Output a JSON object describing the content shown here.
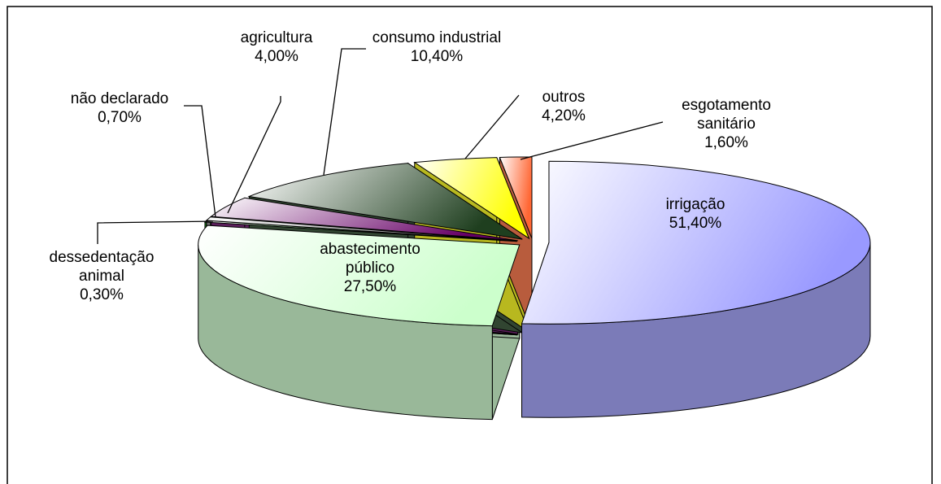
{
  "chart_data": {
    "type": "pie",
    "categories": [
      "irrigação",
      "abastecimento público",
      "dessedentação animal",
      "não declarado",
      "agricultura",
      "consumo industrial",
      "outros",
      "esgotamento sanitário"
    ],
    "values": [
      51.4,
      27.5,
      0.3,
      0.7,
      4.0,
      10.4,
      4.2,
      1.6
    ],
    "value_labels": [
      "51,40%",
      "27,50%",
      "0,30%",
      "0,70%",
      "4,00%",
      "10,40%",
      "4,20%",
      "1,60%"
    ],
    "colors": [
      "#9999ff",
      "#ccffcc",
      "#00cc00",
      "#808080",
      "#660066",
      "#1f3f1f",
      "#ffff00",
      "#ff6633"
    ]
  }
}
